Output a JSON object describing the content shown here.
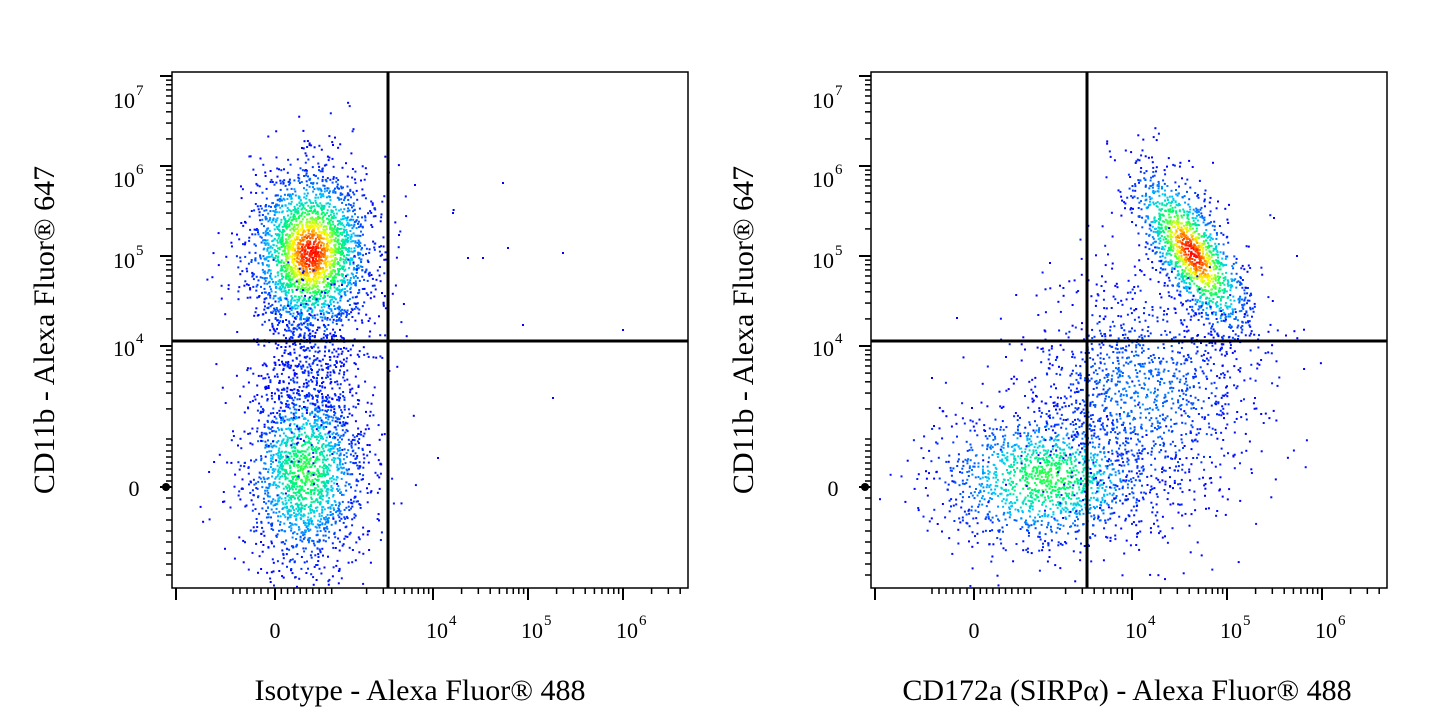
{
  "chart_data": [
    {
      "type": "scatter",
      "subtype": "flow-cytometry-density-dot-plot",
      "xlabel": "Isotype - Alexa Fluor® 488",
      "ylabel": "CD11b - Alexa Fluor® 647",
      "x_scale": "biexponential",
      "y_scale": "biexponential",
      "x_ticks": [
        {
          "value": 0,
          "base": "0",
          "exp": ""
        },
        {
          "value": 10000,
          "base": "10",
          "exp": "4"
        },
        {
          "value": 100000,
          "base": "10",
          "exp": "5"
        },
        {
          "value": 1000000,
          "base": "10",
          "exp": "6"
        }
      ],
      "y_ticks": [
        {
          "value": 0,
          "base": "0",
          "exp": ""
        },
        {
          "value": 10000,
          "base": "10",
          "exp": "4"
        },
        {
          "value": 100000,
          "base": "10",
          "exp": "5"
        },
        {
          "value": 1000000,
          "base": "10",
          "exp": "6"
        },
        {
          "value": 10000000,
          "base": "10",
          "exp": "7"
        }
      ],
      "quadrant_gate": {
        "x": 2500,
        "y": 10000
      },
      "populations": [
        {
          "center": [
            400,
            100000
          ],
          "density": "high"
        },
        {
          "center": [
            400,
            300
          ],
          "density": "medium"
        }
      ],
      "color_scale": [
        "#0000ff",
        "#00c8ff",
        "#00ff60",
        "#ffff00",
        "#ff0000"
      ],
      "grid": false
    },
    {
      "type": "scatter",
      "subtype": "flow-cytometry-density-dot-plot",
      "xlabel": "CD172a (SIRPα) - Alexa Fluor® 488",
      "ylabel": "CD11b - Alexa Fluor® 647",
      "x_scale": "biexponential",
      "y_scale": "biexponential",
      "x_ticks": [
        {
          "value": 0,
          "base": "0",
          "exp": ""
        },
        {
          "value": 10000,
          "base": "10",
          "exp": "4"
        },
        {
          "value": 100000,
          "base": "10",
          "exp": "5"
        },
        {
          "value": 1000000,
          "base": "10",
          "exp": "6"
        }
      ],
      "y_ticks": [
        {
          "value": 0,
          "base": "0",
          "exp": ""
        },
        {
          "value": 10000,
          "base": "10",
          "exp": "4"
        },
        {
          "value": 100000,
          "base": "10",
          "exp": "5"
        },
        {
          "value": 1000000,
          "base": "10",
          "exp": "6"
        },
        {
          "value": 10000000,
          "base": "10",
          "exp": "7"
        }
      ],
      "quadrant_gate": {
        "x": 2500,
        "y": 10000
      },
      "populations": [
        {
          "center": [
            30000,
            100000
          ],
          "density": "high"
        },
        {
          "center": [
            500,
            300
          ],
          "density": "medium"
        }
      ],
      "color_scale": [
        "#0000ff",
        "#00c8ff",
        "#00ff60",
        "#ffff00",
        "#ff0000"
      ],
      "grid": false
    }
  ]
}
